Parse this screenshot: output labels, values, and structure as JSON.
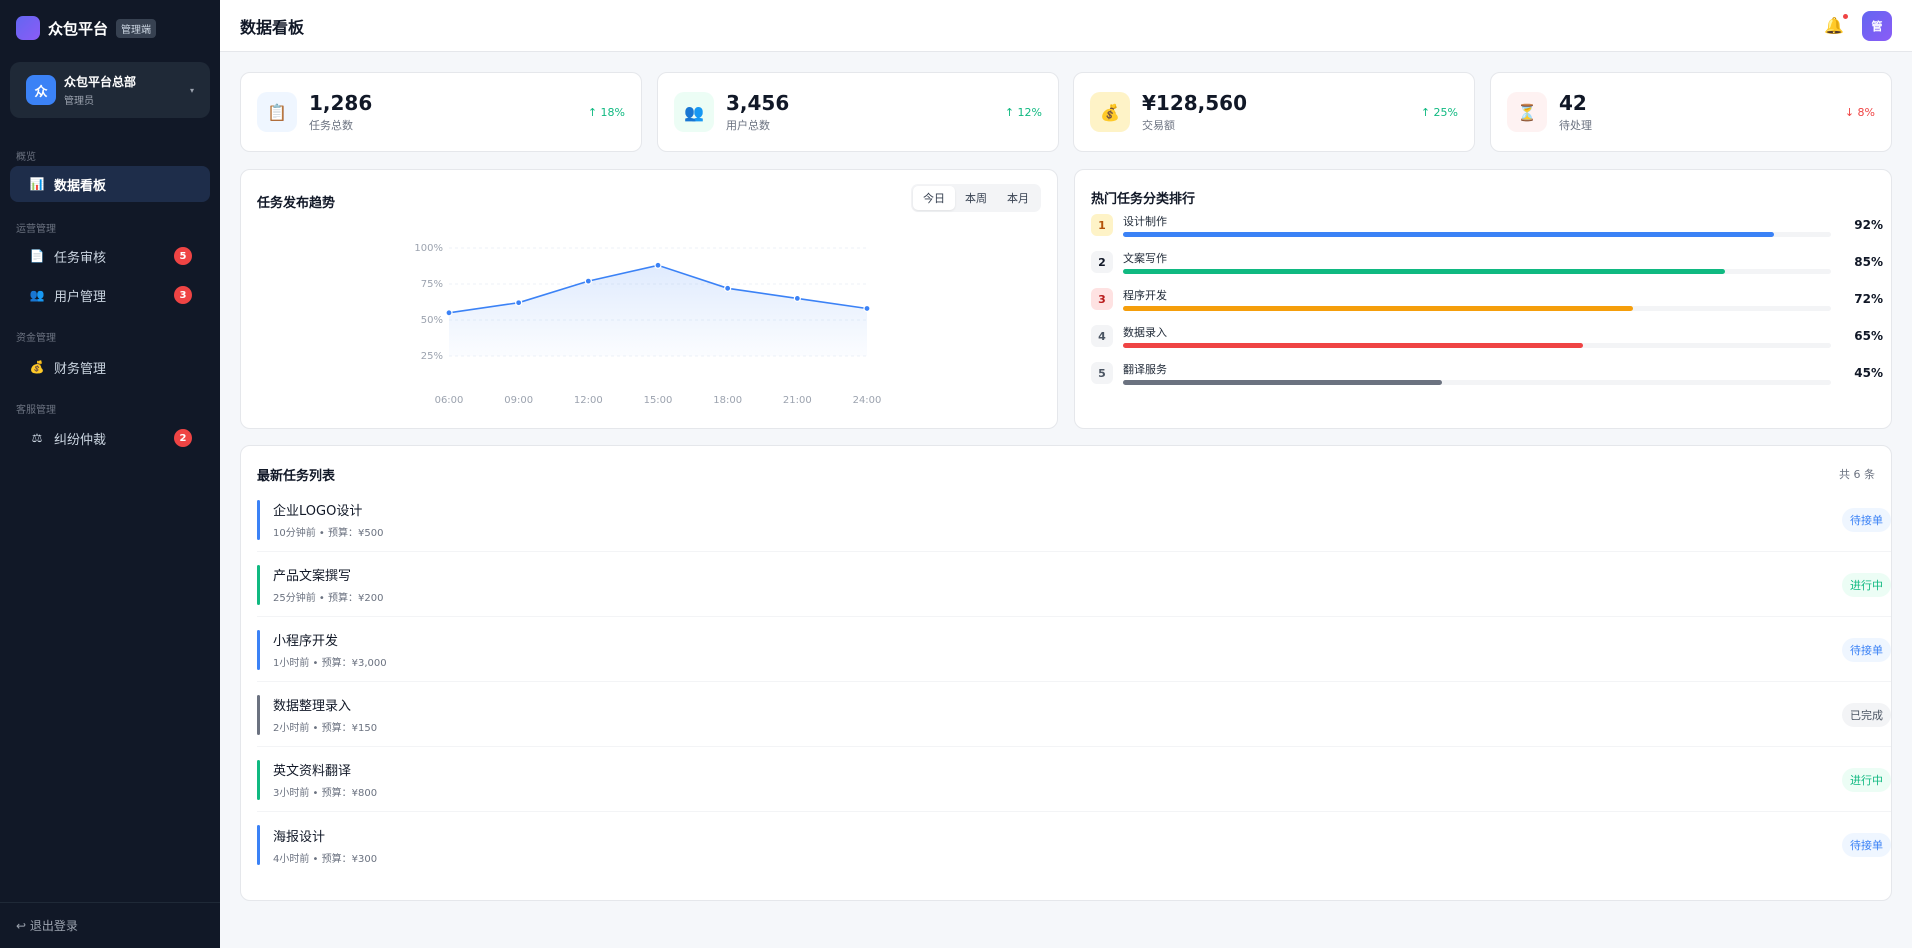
{
  "brand": {
    "name": "众包平台",
    "tag": "管理端"
  },
  "org": {
    "avatar": "众",
    "name": "众包平台总部",
    "role": "管理员",
    "caret": "▾"
  },
  "sidebar": {
    "sections": [
      "概览",
      "运营管理",
      "资金管理",
      "客服管理"
    ],
    "items": [
      {
        "label": "数据看板",
        "icon": "📊",
        "icon_name": "bar-chart-icon",
        "badge": ""
      },
      {
        "label": "任务审核",
        "icon": "📄",
        "icon_name": "document-icon",
        "badge": "5"
      },
      {
        "label": "用户管理",
        "icon": "👥",
        "icon_name": "users-icon",
        "badge": "3"
      },
      {
        "label": "财务管理",
        "icon": "💰",
        "icon_name": "money-bag-icon",
        "badge": ""
      },
      {
        "label": "纠纷仲裁",
        "icon": "⚖",
        "icon_name": "scales-icon",
        "badge": "2"
      }
    ],
    "logout": "↩ 退出登录"
  },
  "header": {
    "title": "数据看板",
    "bell_icon": "🔔",
    "avatar": "管"
  },
  "stats": [
    {
      "icon": "📋",
      "icon_name": "clipboard-icon",
      "value": "1,286",
      "label": "任务总数",
      "trend": "↑ 18%",
      "dir": "up",
      "bg": "#eff6ff"
    },
    {
      "icon": "👥",
      "icon_name": "users-icon",
      "value": "3,456",
      "label": "用户总数",
      "trend": "↑ 12%",
      "dir": "up",
      "bg": "#ecfdf5"
    },
    {
      "icon": "💰",
      "icon_name": "money-bag-icon",
      "value": "¥128,560",
      "label": "交易额",
      "trend": "↑ 25%",
      "dir": "up",
      "bg": "#fef3c7"
    },
    {
      "icon": "⏳",
      "icon_name": "hourglass-icon",
      "value": "42",
      "label": "待处理",
      "trend": "↓ 8%",
      "dir": "down",
      "bg": "#fef2f2"
    }
  ],
  "trend_card": {
    "title": "任务发布趋势",
    "tabs": [
      "今日",
      "本周",
      "本月"
    ],
    "active_tab": 0
  },
  "chart_data": {
    "type": "area",
    "title": "任务发布趋势",
    "categories": [
      "06:00",
      "09:00",
      "12:00",
      "15:00",
      "18:00",
      "21:00",
      "24:00"
    ],
    "values": [
      55,
      62,
      77,
      88,
      72,
      65,
      58
    ],
    "yticks": [
      "100%",
      "75%",
      "50%",
      "25%"
    ],
    "ylim": [
      0,
      100
    ],
    "color": "#3b82f6",
    "grid": true
  },
  "ranking": {
    "title": "热门任务分类排行",
    "items": [
      {
        "rank": "1",
        "name": "设计制作",
        "pct": "92%",
        "value": 92,
        "color": "#3b82f6",
        "num_bg": "#fef3c7",
        "num_color": "#b45309"
      },
      {
        "rank": "2",
        "name": "文案写作",
        "pct": "85%",
        "value": 85,
        "color": "#10b981",
        "num_bg": "#f3f4f6",
        "num_color": "#111827"
      },
      {
        "rank": "3",
        "name": "程序开发",
        "pct": "72%",
        "value": 72,
        "color": "#f59e0b",
        "num_bg": "#fee2e2",
        "num_color": "#b91c1c"
      },
      {
        "rank": "4",
        "name": "数据录入",
        "pct": "65%",
        "value": 65,
        "color": "#ef4444",
        "num_bg": "#f3f4f6",
        "num_color": "#4b5563"
      },
      {
        "rank": "5",
        "name": "翻译服务",
        "pct": "45%",
        "value": 45,
        "color": "#6b7280",
        "num_bg": "#f3f4f6",
        "num_color": "#4b5563"
      }
    ]
  },
  "tasks": {
    "title": "最新任务列表",
    "count": "共 6 条",
    "items": [
      {
        "title": "企业LOGO设计",
        "meta": "10分钟前 • 预算：¥500",
        "status": "待接单",
        "bar": "#3b82f6",
        "status_bg": "#eff6ff",
        "status_color": "#3b82f6"
      },
      {
        "title": "产品文案撰写",
        "meta": "25分钟前 • 预算：¥200",
        "status": "进行中",
        "bar": "#10b981",
        "status_bg": "#ecfdf5",
        "status_color": "#10b981"
      },
      {
        "title": "小程序开发",
        "meta": "1小时前 • 预算：¥3,000",
        "status": "待接单",
        "bar": "#3b82f6",
        "status_bg": "#eff6ff",
        "status_color": "#3b82f6"
      },
      {
        "title": "数据整理录入",
        "meta": "2小时前 • 预算：¥150",
        "status": "已完成",
        "bar": "#6b7280",
        "status_bg": "#f3f4f6",
        "status_color": "#4b5563"
      },
      {
        "title": "英文资料翻译",
        "meta": "3小时前 • 预算：¥800",
        "status": "进行中",
        "bar": "#10b981",
        "status_bg": "#ecfdf5",
        "status_color": "#10b981"
      },
      {
        "title": "海报设计",
        "meta": "4小时前 • 预算：¥300",
        "status": "待接单",
        "bar": "#3b82f6",
        "status_bg": "#eff6ff",
        "status_color": "#3b82f6"
      }
    ]
  }
}
